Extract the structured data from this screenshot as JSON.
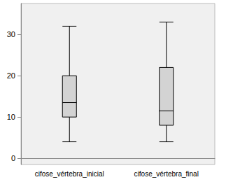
{
  "chart_data": {
    "type": "boxplot",
    "categories": [
      "cifose_vértebra_inicial",
      "cifose_vértebra_final"
    ],
    "values": [
      [
        4,
        10,
        13.5,
        20,
        32
      ],
      [
        4,
        8,
        11.5,
        22,
        33
      ]
    ],
    "color": "#d3d3d3",
    "ylim": [
      -1.5,
      37.5
    ],
    "yticks": [
      0,
      10,
      20,
      30
    ],
    "grid": false
  }
}
